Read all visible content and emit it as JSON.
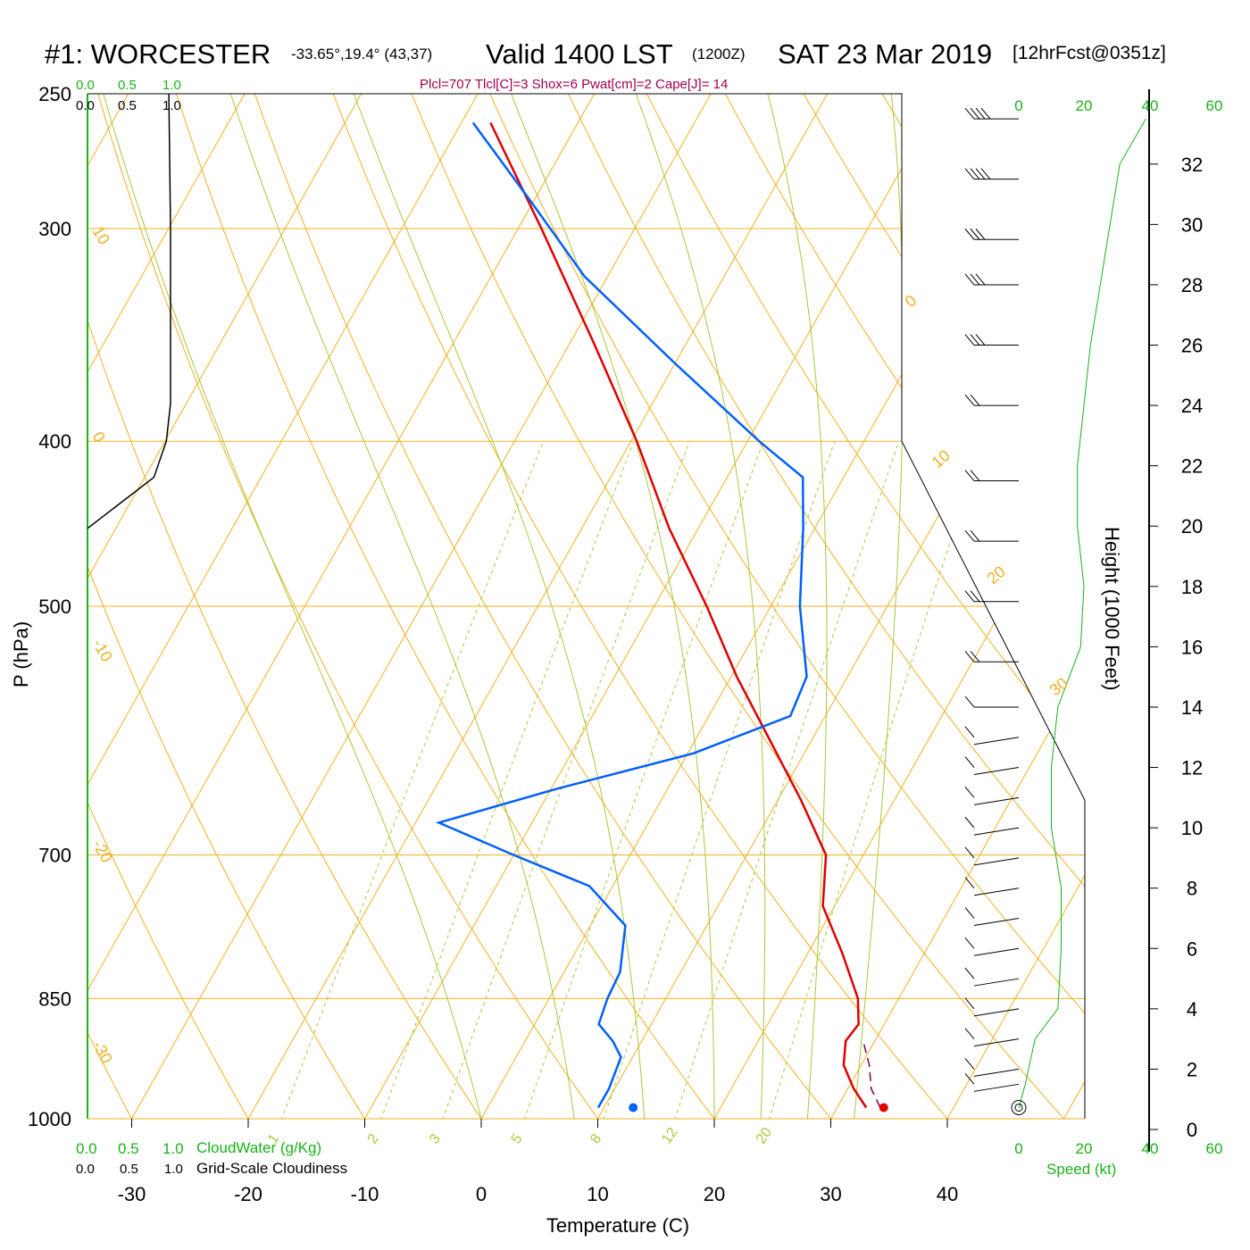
{
  "title": {
    "station": "#1: WORCESTER",
    "coords": "-33.65°,19.4° (43,37)",
    "valid": "Valid 1400 LST",
    "utc": "(1200Z)",
    "date": "SAT 23 Mar 2019",
    "forecast": "[12hrFcst@0351z]"
  },
  "subtitle": "Plcl=707 Tlcl[C]=3 Shox=6 Pwat[cm]=2 Cape[J]= 14",
  "colors": {
    "temperature": "#e00000",
    "dewpoint": "#0060ff",
    "isotherm": "#f0b020",
    "adiabat": "#a8c83a",
    "green": "#19b219",
    "subtitle": "#a0004a"
  },
  "chart_data": {
    "type": "line",
    "subtype": "skew-T log-P sounding",
    "xlabel": "Temperature (C)",
    "ylabel": "P (hPa)",
    "y2label": "Height (1000 Feet)",
    "pressure_ticks": [
      "250",
      "300",
      "400",
      "500",
      "700",
      "850",
      "1000"
    ],
    "temperature_ticks": [
      "-30",
      "-20",
      "-10",
      "0",
      "10",
      "20",
      "30",
      "40"
    ],
    "height_ticks": [
      "0",
      "2",
      "4",
      "6",
      "8",
      "10",
      "12",
      "14",
      "16",
      "18",
      "20",
      "22",
      "24",
      "26",
      "28",
      "30",
      "32"
    ],
    "isotherm_labels": [
      "10",
      "0",
      "-10",
      "-20",
      "-30",
      "0",
      "10",
      "20",
      "30"
    ],
    "mixing_ratio_labels": [
      "1",
      "2",
      "3",
      "5",
      "8",
      "12",
      "20"
    ],
    "temperature_profile": {
      "name": "Temperature",
      "p": [
        985,
        960,
        930,
        900,
        880,
        850,
        800,
        750,
        700,
        650,
        600,
        550,
        500,
        450,
        400,
        350,
        300,
        260
      ],
      "t": [
        32.5,
        30.5,
        28.5,
        27.5,
        27.8,
        26.5,
        23.0,
        19.0,
        16.8,
        12.0,
        6.5,
        0.5,
        -5.5,
        -12.5,
        -19.5,
        -28.0,
        -38.0,
        -47.5
      ]
    },
    "dewpoint_profile": {
      "name": "Dewpoint",
      "p": [
        985,
        960,
        920,
        900,
        880,
        850,
        820,
        770,
        730,
        700,
        670,
        640,
        610,
        580,
        550,
        500,
        450,
        420,
        400,
        360,
        320,
        290,
        260
      ],
      "t": [
        9.5,
        9.5,
        9.0,
        7.5,
        5.5,
        5.0,
        4.8,
        3.0,
        -2.0,
        -10.0,
        -18.0,
        -9.5,
        0.5,
        7.0,
        6.5,
        2.5,
        -1.0,
        -3.5,
        -9.0,
        -20.0,
        -32.0,
        -40.0,
        -49.0
      ]
    },
    "parcel_path": {
      "name": "Parcel",
      "p": [
        985,
        960,
        930,
        900
      ],
      "t": [
        32.5,
        30.8,
        29.5,
        27.8
      ]
    },
    "surface_temperature": 34.0,
    "surface_dewpoint": 12.5,
    "surface_pressure": 985,
    "cloud_water_axis": {
      "label": "CloudWater (g/Kg)",
      "ticks": [
        "0.0",
        "0.5",
        "1.0"
      ]
    },
    "cloudiness_axis": {
      "label": "Grid-Scale Cloudiness",
      "ticks": [
        "0.0",
        "0.5",
        "1.0"
      ]
    },
    "cloudiness_profile": {
      "p": [
        250,
        300,
        350,
        380,
        400,
        420,
        450
      ],
      "value": [
        0.98,
        1.0,
        1.0,
        1.0,
        0.95,
        0.8,
        0.0
      ]
    },
    "wind_speed_axis": {
      "label": "Speed (kt)",
      "ticks": [
        "0",
        "20",
        "40",
        "60"
      ]
    },
    "wind_speed_profile": {
      "height_kft": [
        0.7,
        1.5,
        3.0,
        4.0,
        6.0,
        8.0,
        10.0,
        12.0,
        14.0,
        16.0,
        18.0,
        20.0,
        22.0,
        24.0,
        26.0,
        28.0,
        30.0,
        32.0,
        33.5
      ],
      "speed": [
        0,
        2,
        5,
        12,
        13,
        13,
        10,
        10,
        12,
        19,
        20,
        18,
        18,
        20,
        22,
        25,
        28,
        31,
        39
      ]
    },
    "wind_barbs": {
      "height_kft": [
        33.5,
        31.5,
        29.5,
        28.0,
        26.0,
        24.0,
        21.5,
        19.5,
        17.5,
        15.5,
        14.0,
        13.0,
        12.0,
        11.0,
        10.0,
        9.0,
        8.0,
        7.0,
        6.0,
        5.0,
        4.0,
        3.0,
        2.0,
        1.5
      ],
      "speed_kt": [
        35,
        35,
        30,
        30,
        25,
        20,
        15,
        15,
        15,
        15,
        10,
        10,
        10,
        10,
        10,
        10,
        10,
        10,
        10,
        10,
        10,
        10,
        10,
        10
      ]
    }
  }
}
